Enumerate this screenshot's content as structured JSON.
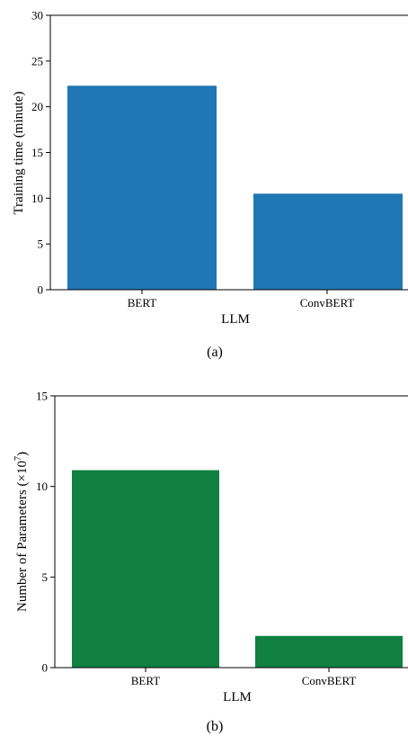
{
  "chart_data": [
    {
      "type": "bar",
      "categories": [
        "BERT",
        "ConvBERT"
      ],
      "values": [
        22.3,
        10.5
      ],
      "xlabel": "LLM",
      "ylabel": "Training time (minute)",
      "ylim": [
        0,
        30
      ],
      "yticks": [
        "0",
        "5",
        "10",
        "15",
        "20",
        "25",
        "30"
      ],
      "bar_color": "#1f77b4",
      "caption": "(a)",
      "grid": false
    },
    {
      "type": "bar",
      "categories": [
        "BERT",
        "ConvBERT"
      ],
      "values": [
        10.9,
        1.75
      ],
      "xlabel": "LLM",
      "ylabel_main": "Number of Parameters (×10",
      "ylabel_exp": "7",
      "ylabel_close": ")",
      "ylim": [
        0,
        15
      ],
      "yticks": [
        "0",
        "5",
        "10",
        "15"
      ],
      "bar_color": "#0f8040",
      "caption": "(b)",
      "grid": false
    }
  ]
}
